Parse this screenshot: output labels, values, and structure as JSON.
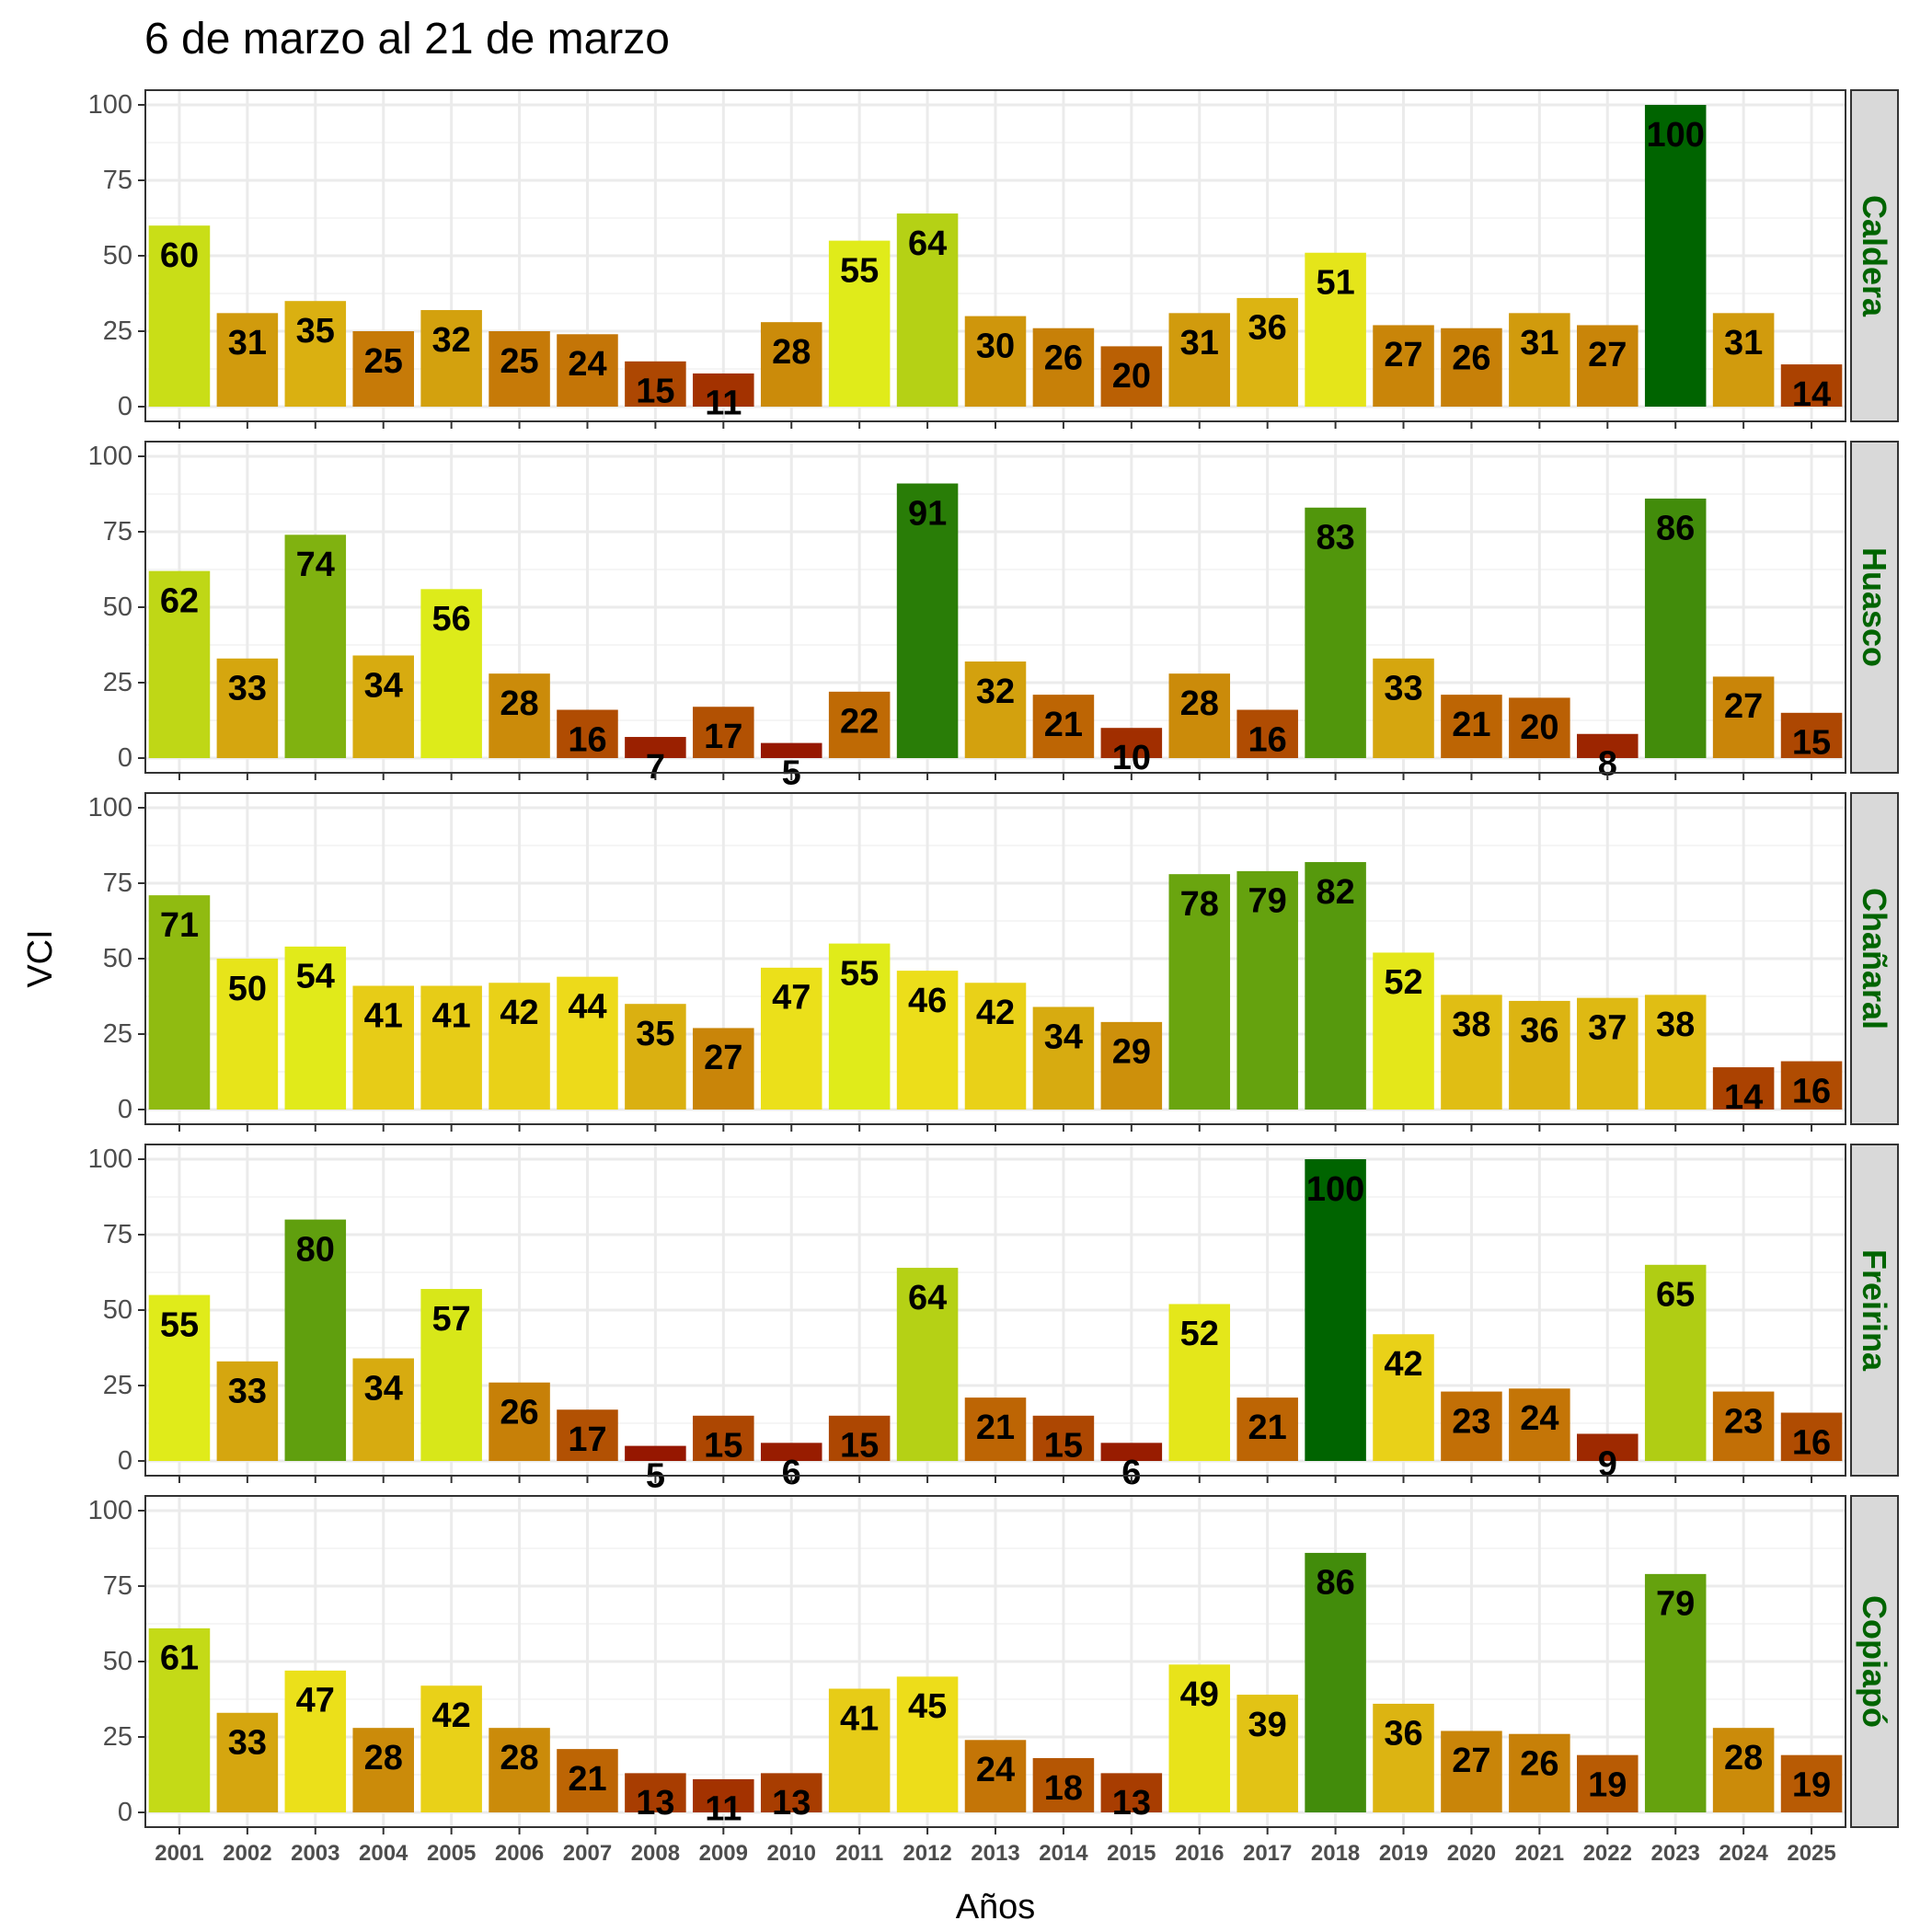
{
  "chart_data": {
    "type": "bar",
    "title": "6 de marzo al 21 de marzo",
    "xlabel": "Años",
    "ylabel": "VCI",
    "ylim": [
      0,
      100
    ],
    "yticks": [
      0,
      25,
      50,
      75,
      100
    ],
    "grid": true,
    "facet": "rows",
    "categories": [
      "2001",
      "2002",
      "2003",
      "2004",
      "2005",
      "2006",
      "2007",
      "2008",
      "2009",
      "2010",
      "2011",
      "2012",
      "2013",
      "2014",
      "2015",
      "2016",
      "2017",
      "2018",
      "2019",
      "2020",
      "2021",
      "2022",
      "2023",
      "2024",
      "2025"
    ],
    "series": [
      {
        "name": "Caldera",
        "values": [
          60,
          31,
          35,
          25,
          32,
          25,
          24,
          15,
          11,
          28,
          55,
          64,
          30,
          26,
          20,
          31,
          36,
          51,
          27,
          26,
          31,
          27,
          100,
          31,
          14
        ]
      },
      {
        "name": "Huasco",
        "values": [
          62,
          33,
          74,
          34,
          56,
          28,
          16,
          7,
          17,
          5,
          22,
          91,
          32,
          21,
          10,
          28,
          16,
          83,
          33,
          21,
          20,
          8,
          86,
          27,
          15
        ]
      },
      {
        "name": "Chañaral",
        "values": [
          71,
          50,
          54,
          41,
          41,
          42,
          44,
          35,
          27,
          47,
          55,
          46,
          42,
          34,
          29,
          78,
          79,
          82,
          52,
          38,
          36,
          37,
          38,
          14,
          16
        ]
      },
      {
        "name": "Freirina",
        "values": [
          55,
          33,
          80,
          34,
          57,
          26,
          17,
          5,
          15,
          6,
          15,
          64,
          21,
          15,
          6,
          52,
          21,
          100,
          42,
          23,
          24,
          9,
          65,
          23,
          16
        ]
      },
      {
        "name": "Copiapó",
        "values": [
          61,
          33,
          47,
          28,
          42,
          28,
          21,
          13,
          11,
          13,
          41,
          45,
          24,
          18,
          13,
          49,
          39,
          86,
          36,
          27,
          26,
          19,
          79,
          28,
          19
        ]
      }
    ],
    "color_scale": [
      "#8b0000",
      "#a33300",
      "#c06b05",
      "#d6a80f",
      "#eedc1a",
      "#dfec1a",
      "#a8c813",
      "#6ba60f",
      "#338309",
      "#006400"
    ],
    "strip_color": "#006400"
  }
}
